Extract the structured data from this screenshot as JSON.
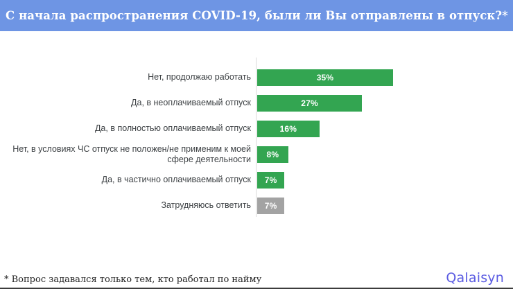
{
  "header": {
    "title": "С начала распространения COVID-19, были ли Вы отправлены в отпуск?*",
    "bg_color": "#6E95E4",
    "text_color": "#FFFFFF"
  },
  "chart_data": {
    "type": "bar",
    "orientation": "horizontal",
    "title": "С начала распространения COVID-19, были ли Вы отправлены в отпуск?*",
    "categories": [
      "Нет, продолжаю работать",
      "Да, в неоплачиваемый отпуск",
      "Да, в полностью оплачиваемый отпуск",
      "Нет, в условиях ЧС отпуск не положен/не применим к моей сфере деятельности",
      "Да, в частично оплачиваемый отпуск",
      "Затрудняюсь ответить"
    ],
    "values": [
      35,
      27,
      16,
      8,
      7,
      7
    ],
    "value_labels": [
      "35%",
      "27%",
      "16%",
      "8%",
      "7%",
      "7%"
    ],
    "bar_colors": [
      "#33A551",
      "#33A551",
      "#33A551",
      "#33A551",
      "#33A551",
      "#A3A3A3"
    ],
    "xlim": [
      0,
      37
    ],
    "axis_color": "#D9D9D9",
    "legend": "none",
    "grid": "off",
    "value_label_position": "inside-center"
  },
  "footer": {
    "note": "* Вопрос задавался только тем, кто работал по найму"
  },
  "logo": {
    "text": "Qalaisyn",
    "color": "#5B5CE2"
  }
}
